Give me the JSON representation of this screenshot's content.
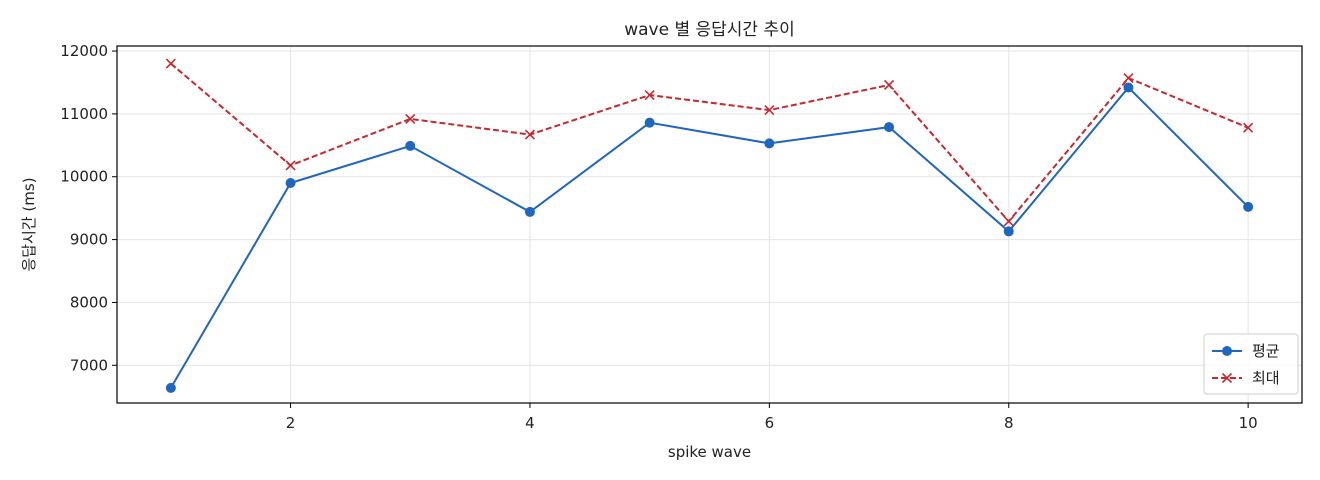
{
  "chart_data": {
    "type": "line",
    "title": "wave 별 응답시간 추이",
    "xlabel": "spike wave",
    "ylabel": "응답시간 (ms)",
    "x": [
      1,
      2,
      3,
      4,
      5,
      6,
      7,
      8,
      9,
      10
    ],
    "xticks": [
      2,
      4,
      6,
      8,
      10
    ],
    "yticks": [
      7000,
      8000,
      9000,
      10000,
      11000,
      12000
    ],
    "xlim": [
      0.55,
      10.45
    ],
    "ylim": [
      6400,
      12080
    ],
    "grid": true,
    "legend_position": "lower-right",
    "series": [
      {
        "name": "평균",
        "color": "#1f66be",
        "marker": "circle",
        "line_style": "solid",
        "values": [
          6640,
          9900,
          10490,
          9440,
          10860,
          10530,
          10790,
          9130,
          11420,
          9520
        ]
      },
      {
        "name": "최대",
        "color": "#c8282d",
        "marker": "x",
        "line_style": "dashed",
        "values": [
          11800,
          10180,
          10920,
          10670,
          11300,
          11060,
          11460,
          9290,
          11570,
          10780
        ]
      }
    ]
  }
}
